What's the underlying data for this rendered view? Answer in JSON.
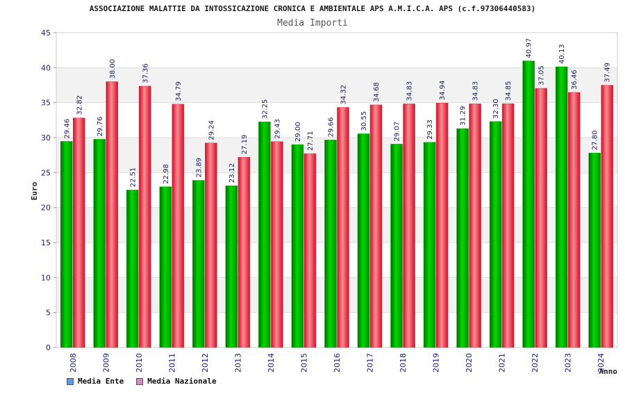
{
  "header": {
    "title": "ASSOCIAZIONE MALATTIE DA INTOSSICAZIONE CRONICA E AMBIENTALE APS A.M.I.C.A. APS (c.f.97306440583)",
    "subtitle": "Media Importi"
  },
  "colors": {
    "ente_bar": "#00b400",
    "nazionale_bar": "#e8303c",
    "ente_legend_swatch": "#5a9be6",
    "nazionale_legend_swatch": "#d98ac4",
    "tick_text": "#1a1a8c",
    "band": "#f2f2f2"
  },
  "legend": {
    "ente": "Media Ente",
    "nazionale": "Media Nazionale"
  },
  "chart_data": {
    "type": "bar",
    "title": "Media Importi",
    "xlabel": "Anno",
    "ylabel": "Euro",
    "ylim": [
      0,
      45
    ],
    "yticks": [
      0,
      5,
      10,
      15,
      20,
      25,
      30,
      35,
      40,
      45
    ],
    "grid": true,
    "legend_position": "bottom-left",
    "categories": [
      "2008",
      "2009",
      "2010",
      "2011",
      "2012",
      "2013",
      "2014",
      "2015",
      "2016",
      "2017",
      "2018",
      "2019",
      "2020",
      "2021",
      "2022",
      "2023",
      "2024"
    ],
    "series": [
      {
        "name": "Media Ente",
        "values": [
          29.46,
          29.76,
          22.51,
          22.98,
          23.89,
          23.12,
          32.25,
          29.0,
          29.66,
          30.55,
          29.07,
          29.33,
          31.29,
          32.3,
          40.97,
          40.13,
          27.8
        ],
        "labels": [
          "29.46",
          "29.76",
          "22.51",
          "22.98",
          "23.89",
          "23.12",
          "32.25",
          "29.00",
          "29.66",
          "30.55",
          "29.07",
          "29.33",
          "31.29",
          "32.30",
          "40.97",
          "40.13",
          "27.80"
        ]
      },
      {
        "name": "Media Nazionale",
        "values": [
          32.82,
          38.0,
          37.36,
          34.79,
          29.24,
          27.19,
          29.43,
          27.71,
          34.32,
          34.68,
          34.83,
          34.94,
          34.83,
          34.85,
          37.05,
          36.46,
          37.49
        ],
        "labels": [
          "32.82",
          "38.00",
          "37.36",
          "34.79",
          "29.24",
          "27.19",
          "29.43",
          "27.71",
          "34.32",
          "34.68",
          "34.83",
          "34.94",
          "34.83",
          "34.85",
          "37.05",
          "36.46",
          "37.49"
        ]
      }
    ]
  }
}
